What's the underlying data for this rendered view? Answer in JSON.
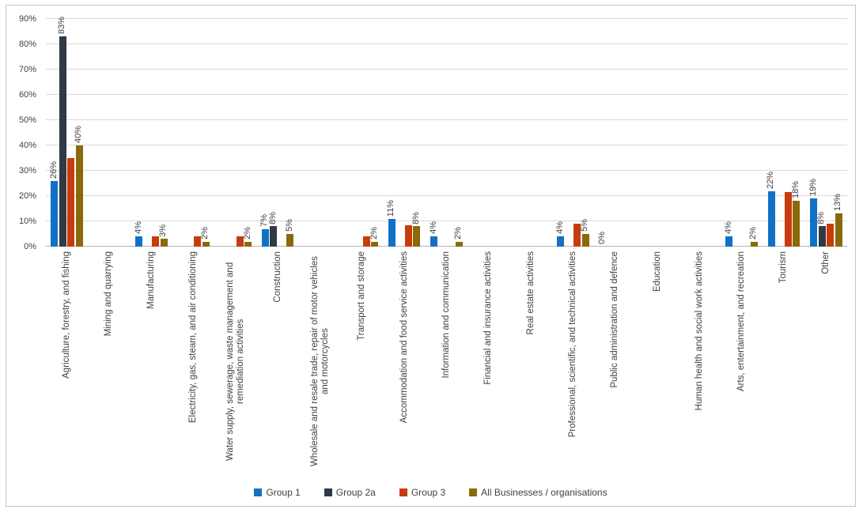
{
  "chart_data": {
    "type": "bar",
    "title": "",
    "xlabel": "",
    "ylabel": "",
    "y_axis": {
      "min": 0,
      "max": 90,
      "tick_step": 10,
      "ticks": [
        "0%",
        "10%",
        "20%",
        "30%",
        "40%",
        "50%",
        "60%",
        "70%",
        "80%",
        "90%"
      ],
      "grid": true
    },
    "legend_position": "bottom",
    "categories": [
      "Agriculture, forestry, and fishing",
      "Mining and quarrying",
      "Manufacturing",
      "Electricity, gas, steam, and air conditioning",
      "Water supply, sewerage, waste management and remediation activities",
      "Construction",
      "Wholesale and resale trade, repair of motor vehicles and motorcycles",
      "Transport and storage",
      "Accommodation and food service activities",
      "Information and communication",
      "Financial and insurance activities",
      "Real estate activities",
      "Professional, scientific, and technical activities",
      "Public administration and defence",
      "Education",
      "Human health and social work activities",
      "Arts, entertainment, and recreation",
      "Tourism",
      "Other"
    ],
    "series": [
      {
        "name": "Group 1",
        "color": "#1271c4",
        "values": [
          26,
          null,
          4,
          null,
          null,
          7,
          null,
          null,
          11,
          4,
          null,
          null,
          4,
          0,
          null,
          null,
          4,
          22,
          19
        ],
        "labels": [
          "26%",
          null,
          "4%",
          null,
          null,
          "7%",
          null,
          null,
          "11%",
          "4%",
          null,
          null,
          "4%",
          "0%",
          null,
          null,
          "4%",
          "22%",
          "19%"
        ]
      },
      {
        "name": "Group 2a",
        "color": "#303945",
        "values": [
          83,
          null,
          null,
          null,
          null,
          8,
          null,
          null,
          null,
          null,
          null,
          null,
          null,
          null,
          null,
          null,
          null,
          null,
          8
        ],
        "labels": [
          "83%",
          null,
          null,
          null,
          null,
          "8%",
          null,
          null,
          null,
          null,
          null,
          null,
          null,
          null,
          null,
          null,
          null,
          null,
          "8%"
        ]
      },
      {
        "name": "Group 3",
        "color": "#c83b0b",
        "values": [
          35,
          null,
          4,
          4,
          4,
          null,
          null,
          4,
          8.5,
          null,
          null,
          null,
          9,
          null,
          null,
          null,
          null,
          21.5,
          9
        ],
        "labels": [
          null,
          null,
          null,
          null,
          null,
          null,
          null,
          null,
          null,
          null,
          null,
          null,
          null,
          null,
          null,
          null,
          null,
          null,
          null
        ]
      },
      {
        "name": "All Businesses / organisations",
        "color": "#8a6908",
        "values": [
          40,
          null,
          3,
          2,
          2,
          5,
          null,
          2,
          8,
          2,
          null,
          null,
          5,
          null,
          null,
          null,
          2,
          18,
          13
        ],
        "labels": [
          "40%",
          null,
          "3%",
          "2%",
          "2%",
          "5%",
          null,
          "2%",
          "8%",
          "2%",
          null,
          null,
          "5%",
          null,
          null,
          null,
          "2%",
          "18%",
          "13%"
        ]
      }
    ]
  },
  "colors": {
    "background": "#ffffff",
    "frame_border": "#c6c6c6",
    "gridline": "#d9d9d9",
    "axis_line": "#b3b3b3",
    "text": "#404040"
  }
}
